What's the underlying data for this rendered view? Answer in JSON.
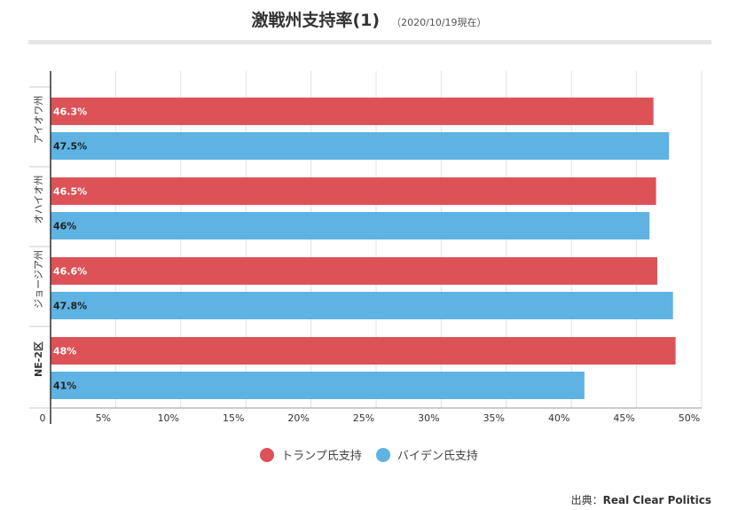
{
  "header": {
    "title": "激戦州支持率(1)",
    "subtitle": "（2020/10/19現在）"
  },
  "source": {
    "label": "出典：",
    "name": "Real Clear Politics"
  },
  "colors": {
    "trump": "#dd5256",
    "biden": "#5eb3e3"
  },
  "chart_data": {
    "type": "bar",
    "orientation": "horizontal",
    "categories": [
      "アイオワ州",
      "オハイオ州",
      "ジョージア州",
      "NE-2区"
    ],
    "series": [
      {
        "name": "トランプ氏支持",
        "values": [
          46.3,
          46.5,
          46.6,
          48
        ],
        "labels": [
          "46.3%",
          "46.5%",
          "46.6%",
          "48%"
        ]
      },
      {
        "name": "バイデン氏支持",
        "values": [
          47.5,
          46,
          47.8,
          41
        ],
        "labels": [
          "47.5%",
          "46%",
          "47.8%",
          "41%"
        ]
      }
    ],
    "xlim": [
      0,
      50
    ],
    "xticks": [
      0,
      5,
      10,
      15,
      20,
      25,
      30,
      35,
      40,
      45,
      50
    ],
    "xtick_labels": [
      "0",
      "5%",
      "10%",
      "15%",
      "20%",
      "25%",
      "30%",
      "35%",
      "40%",
      "45%",
      "50%"
    ],
    "grid": true,
    "legend": "bottom-center"
  }
}
